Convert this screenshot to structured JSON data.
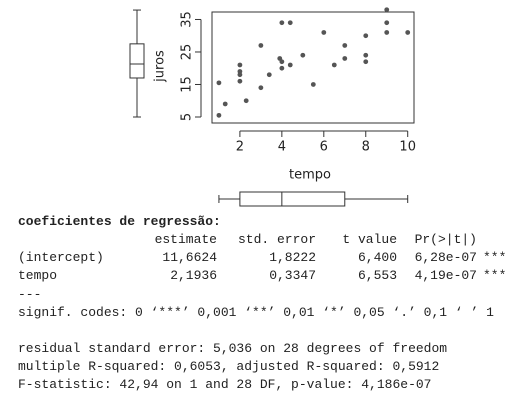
{
  "chart_data": {
    "type": "scatter",
    "x_label": "tempo",
    "y_label": "juros",
    "x": [
      1,
      1,
      1.3,
      2,
      2,
      2,
      2,
      2.3,
      3,
      3,
      3.4,
      3.9,
      4,
      4,
      4,
      4.4,
      4.4,
      5,
      5.5,
      6,
      6.5,
      7,
      7,
      8,
      8,
      8,
      9,
      9,
      9,
      10
    ],
    "values": [
      5.5,
      15.5,
      9,
      16,
      18,
      19,
      21,
      10,
      14,
      27,
      18,
      23,
      20,
      22,
      34,
      34,
      21,
      24,
      15,
      31,
      21,
      23,
      27,
      22,
      24,
      30,
      31,
      34,
      38,
      31
    ],
    "color": "#555555",
    "xlim": [
      0.67,
      10.3
    ],
    "ylim": [
      3.15,
      37.3
    ],
    "xticks": [
      2,
      4,
      6,
      8,
      10
    ],
    "yticks": [
      5,
      15,
      25,
      35
    ],
    "boxplots": {
      "x": {
        "min": 1,
        "q1": 2,
        "median": 4,
        "q3": 7,
        "max": 10
      },
      "y": {
        "min": 5,
        "q1": 17,
        "median": 21.3,
        "q3": 27.5,
        "max": 37.9
      }
    }
  },
  "output": {
    "heading": "coeficientes de regressão:",
    "columns": [
      "estimate",
      "std. error",
      "t value",
      "Pr(>|t|)"
    ],
    "rows": [
      [
        "(intercept)",
        "11,6624",
        "1,8222",
        "6,400",
        "6,28e-07",
        "***"
      ],
      [
        "tempo",
        "2,1936",
        "0,3347",
        "6,553",
        "4,19e-07",
        "***"
      ]
    ],
    "separator": "---",
    "signif": "signif. codes: 0 ‘***’ 0,001 ‘**’ 0,01 ‘*’ 0,05 ‘.’ 0,1 ‘ ’ 1",
    "summary": [
      "residual standard error: 5,036 on 28 degrees of freedom",
      "multiple R-squared: 0,6053, adjusted R-squared: 0,5912",
      "F-statistic: 42,94 on 1 and 28 DF, p-value: 4,186e-07"
    ]
  }
}
